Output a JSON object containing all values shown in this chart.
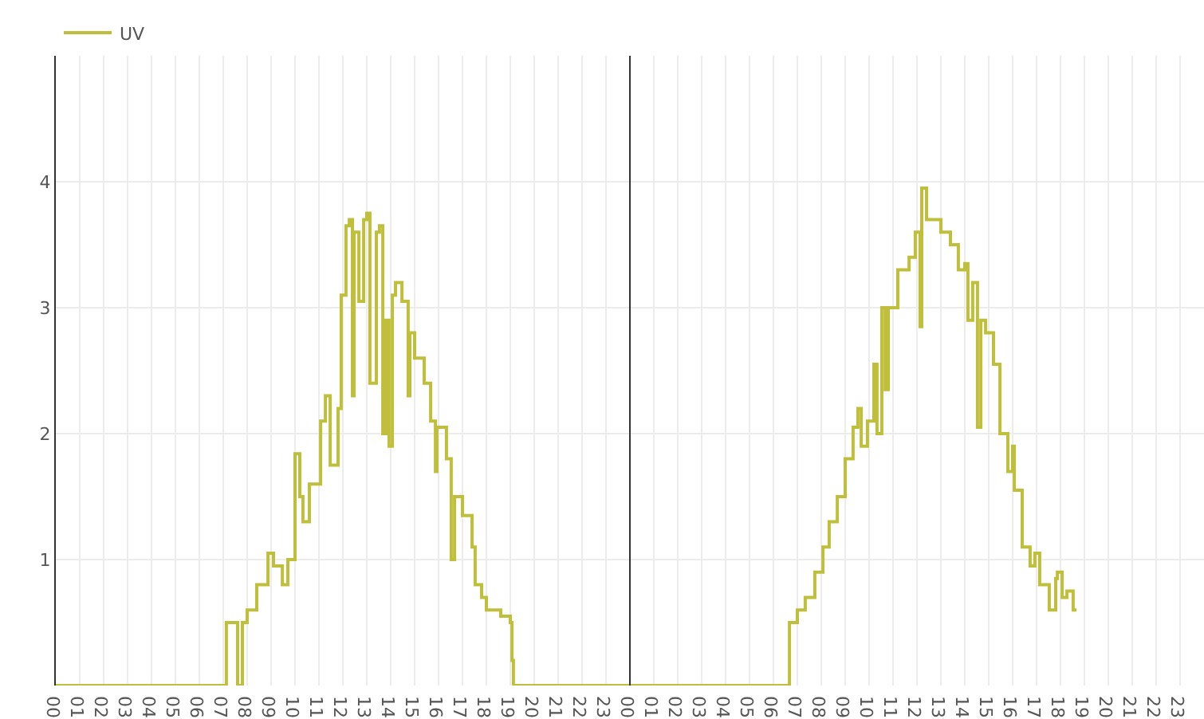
{
  "chart_data": {
    "type": "step",
    "x": [
      0,
      7.13,
      7.6,
      7.8,
      8.0,
      8.4,
      8.87,
      9.1,
      9.47,
      9.7,
      10.0,
      10.2,
      10.33,
      10.6,
      11.07,
      11.27,
      11.47,
      11.8,
      11.93,
      12.13,
      12.27,
      12.4,
      12.47,
      12.67,
      12.87,
      13.0,
      13.13,
      13.4,
      13.53,
      13.67,
      13.8,
      13.93,
      14.07,
      14.2,
      14.47,
      14.73,
      14.8,
      15.0,
      15.4,
      15.67,
      15.87,
      15.93,
      16.33,
      16.53,
      16.67,
      17.0,
      17.4,
      17.53,
      17.8,
      18.0,
      18.53,
      18.6,
      19.0,
      19.07,
      19.13,
      30.67,
      31.0,
      31.33,
      31.73,
      32.07,
      32.33,
      32.67,
      33.0,
      33.33,
      33.53,
      33.67,
      33.93,
      34.2,
      34.33,
      34.53,
      34.67,
      34.8,
      35.2,
      35.67,
      35.93,
      36.13,
      36.2,
      36.4,
      37.0,
      37.4,
      37.73,
      38.0,
      38.13,
      38.33,
      38.53,
      38.67,
      38.87,
      39.2,
      39.47,
      39.8,
      40.0,
      40.07,
      40.4,
      40.73,
      40.93,
      41.13,
      41.53,
      41.8,
      41.87,
      42.07,
      42.27,
      42.53,
      42.67
    ],
    "series": [
      {
        "name": "UV",
        "color": "#c0bf3c",
        "values": [
          0,
          0.5,
          0,
          0.5,
          0.6,
          0.8,
          1.05,
          0.95,
          0.8,
          1.0,
          1.84,
          1.5,
          1.3,
          1.6,
          2.1,
          2.3,
          1.75,
          2.2,
          3.1,
          3.65,
          3.7,
          2.3,
          3.6,
          3.05,
          3.7,
          3.75,
          2.4,
          3.6,
          3.65,
          2.0,
          2.9,
          1.9,
          3.1,
          3.2,
          3.05,
          2.3,
          2.8,
          2.6,
          2.4,
          2.1,
          1.7,
          2.05,
          1.8,
          1.0,
          1.5,
          1.35,
          1.1,
          0.8,
          0.7,
          0.6,
          0.6,
          0.55,
          0.5,
          0.2,
          0,
          0.5,
          0.6,
          0.7,
          0.9,
          1.1,
          1.3,
          1.5,
          1.8,
          2.05,
          2.2,
          1.9,
          2.1,
          2.55,
          2.0,
          3.0,
          2.35,
          3.0,
          3.3,
          3.4,
          3.6,
          2.85,
          3.95,
          3.7,
          3.6,
          3.5,
          3.3,
          3.35,
          2.9,
          3.2,
          2.05,
          2.9,
          2.8,
          2.55,
          2.0,
          1.7,
          1.9,
          1.55,
          1.1,
          0.95,
          1.05,
          0.8,
          0.6,
          0.85,
          0.9,
          0.7,
          0.75,
          0.6,
          0.6
        ]
      }
    ],
    "xlim": [
      0,
      48
    ],
    "xticks": [
      {
        "value": 0,
        "label": "00"
      },
      {
        "value": 1,
        "label": "01"
      },
      {
        "value": 2,
        "label": "02"
      },
      {
        "value": 3,
        "label": "03"
      },
      {
        "value": 4,
        "label": "04"
      },
      {
        "value": 5,
        "label": "05"
      },
      {
        "value": 6,
        "label": "06"
      },
      {
        "value": 7,
        "label": "07"
      },
      {
        "value": 8,
        "label": "08"
      },
      {
        "value": 9,
        "label": "09"
      },
      {
        "value": 10,
        "label": "10"
      },
      {
        "value": 11,
        "label": "11"
      },
      {
        "value": 12,
        "label": "12"
      },
      {
        "value": 13,
        "label": "13"
      },
      {
        "value": 14,
        "label": "14"
      },
      {
        "value": 15,
        "label": "15"
      },
      {
        "value": 16,
        "label": "16"
      },
      {
        "value": 17,
        "label": "17"
      },
      {
        "value": 18,
        "label": "18"
      },
      {
        "value": 19,
        "label": "19"
      },
      {
        "value": 20,
        "label": "20"
      },
      {
        "value": 21,
        "label": "21"
      },
      {
        "value": 22,
        "label": "22"
      },
      {
        "value": 23,
        "label": "23"
      },
      {
        "value": 24,
        "label": "00"
      },
      {
        "value": 25,
        "label": "01"
      },
      {
        "value": 26,
        "label": "02"
      },
      {
        "value": 27,
        "label": "03"
      },
      {
        "value": 28,
        "label": "04"
      },
      {
        "value": 29,
        "label": "05"
      },
      {
        "value": 30,
        "label": "06"
      },
      {
        "value": 31,
        "label": "07"
      },
      {
        "value": 32,
        "label": "08"
      },
      {
        "value": 33,
        "label": "09"
      },
      {
        "value": 34,
        "label": "10"
      },
      {
        "value": 35,
        "label": "11"
      },
      {
        "value": 36,
        "label": "12"
      },
      {
        "value": 37,
        "label": "13"
      },
      {
        "value": 38,
        "label": "14"
      },
      {
        "value": 39,
        "label": "15"
      },
      {
        "value": 40,
        "label": "16"
      },
      {
        "value": 41,
        "label": "17"
      },
      {
        "value": 42,
        "label": "18"
      },
      {
        "value": 43,
        "label": "19"
      },
      {
        "value": 44,
        "label": "20"
      },
      {
        "value": 45,
        "label": "21"
      },
      {
        "value": 46,
        "label": "22"
      },
      {
        "value": 47,
        "label": "23"
      }
    ],
    "ylim": [
      0,
      5
    ],
    "yticks": [
      1,
      2,
      3,
      4
    ],
    "ref_lines": [
      {
        "axis": "x",
        "value": 24,
        "color": "#333333"
      }
    ],
    "grid": true,
    "legend": "top left",
    "marker": "none",
    "line_style": "solid"
  }
}
